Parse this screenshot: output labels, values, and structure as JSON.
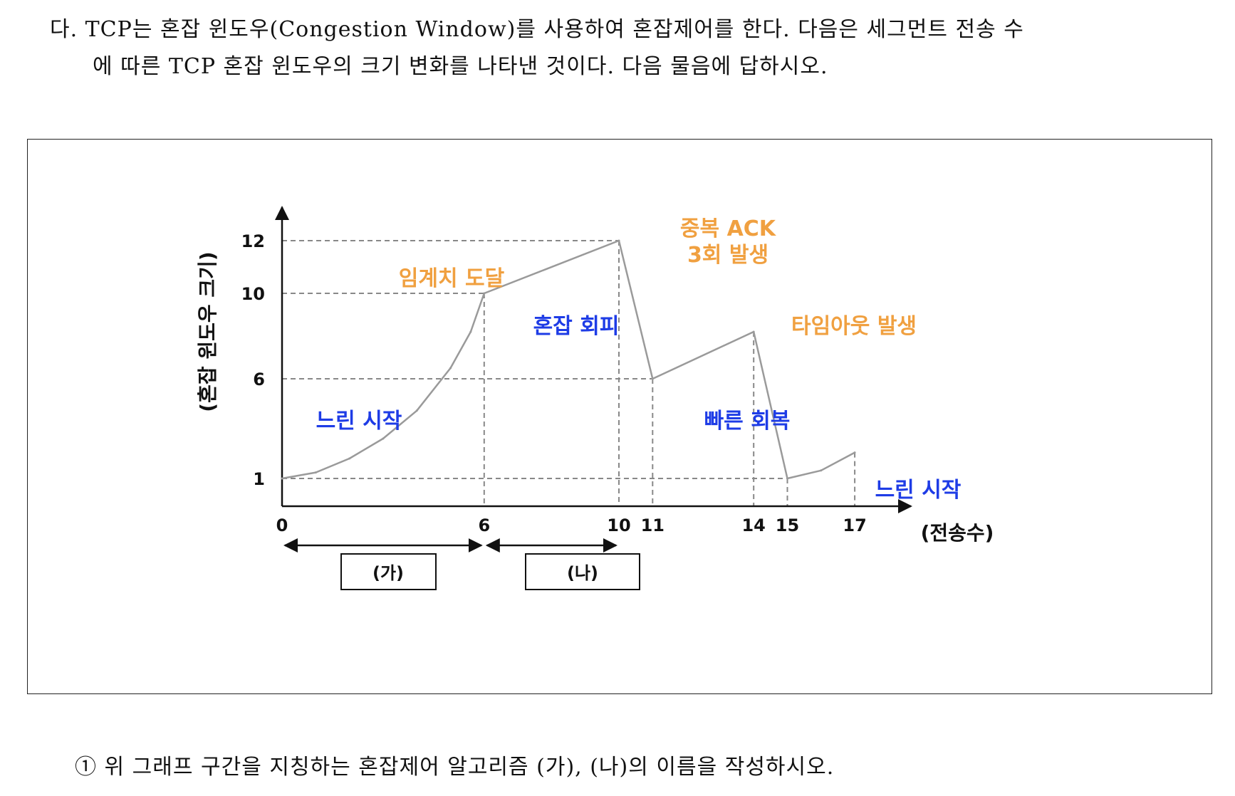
{
  "question": {
    "line1": "다. TCP는 혼잡 윈도우(Congestion Window)를 사용하여 혼잡제어를 한다. 다음은 세그먼트 전송 수",
    "line2": "에 따른 TCP 혼잡 윈도우의 크기 변화를 나타낸 것이다. 다음 물음에 답하시오.",
    "sub_question": "① 위 그래프 구간을 지칭하는 혼잡제어 알고리즘 (가), (나)의 이름을 작성하시오."
  },
  "colors": {
    "orange": "#F0A040",
    "blue": "#1E3CE6",
    "curve": "#9A9A9A",
    "axis": "#111111"
  },
  "chart_data": {
    "type": "line",
    "ylabel": "(혼잡 윈도우 크기)",
    "xlabel": "(전송수)",
    "x_ticks": [
      "0",
      "6",
      "10",
      "11",
      "14",
      "15",
      "17"
    ],
    "y_ticks": [
      "1",
      "6",
      "10",
      "12"
    ],
    "series": [
      {
        "points": [
          {
            "x": 0,
            "y": 1
          },
          {
            "x": 1,
            "y": 1.3
          },
          {
            "x": 2,
            "y": 2
          },
          {
            "x": 3,
            "y": 3
          },
          {
            "x": 4,
            "y": 4.4
          },
          {
            "x": 5,
            "y": 6.5
          },
          {
            "x": 5.6,
            "y": 8.2
          },
          {
            "x": 6,
            "y": 10
          },
          {
            "x": 10,
            "y": 12
          },
          {
            "x": 11,
            "y": 6
          },
          {
            "x": 14,
            "y": 8.2
          },
          {
            "x": 15,
            "y": 1
          },
          {
            "x": 16,
            "y": 1.4
          },
          {
            "x": 17,
            "y": 2.3
          }
        ]
      }
    ],
    "annotations": {
      "threshold": "임계치 도달",
      "dup_ack_1": "중복 ACK",
      "dup_ack_2": "3회 발생",
      "timeout": "타임아웃 발생",
      "slow_start": "느린 시작",
      "congestion_avoidance": "혼잡 회피",
      "fast_recovery": "빠른 회복",
      "slow_start_2": "느린 시작"
    },
    "intervals": [
      {
        "label": "(가)",
        "from": 0,
        "to": 6
      },
      {
        "label": "(나)",
        "from": 6,
        "to": 10
      }
    ]
  }
}
